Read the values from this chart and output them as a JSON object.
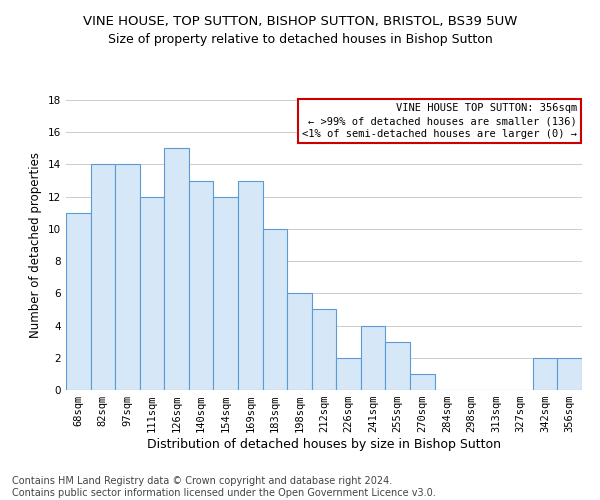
{
  "title": "VINE HOUSE, TOP SUTTON, BISHOP SUTTON, BRISTOL, BS39 5UW",
  "subtitle": "Size of property relative to detached houses in Bishop Sutton",
  "xlabel": "Distribution of detached houses by size in Bishop Sutton",
  "ylabel": "Number of detached properties",
  "categories": [
    "68sqm",
    "82sqm",
    "97sqm",
    "111sqm",
    "126sqm",
    "140sqm",
    "154sqm",
    "169sqm",
    "183sqm",
    "198sqm",
    "212sqm",
    "226sqm",
    "241sqm",
    "255sqm",
    "270sqm",
    "284sqm",
    "298sqm",
    "313sqm",
    "327sqm",
    "342sqm",
    "356sqm"
  ],
  "values": [
    11,
    14,
    14,
    12,
    15,
    13,
    12,
    13,
    10,
    6,
    5,
    2,
    4,
    3,
    1,
    0,
    0,
    0,
    0,
    2,
    2
  ],
  "bar_facecolor": "#d6e8f7",
  "bar_edgecolor": "#5b9bd5",
  "annotation_box_text": "VINE HOUSE TOP SUTTON: 356sqm\n← >99% of detached houses are smaller (136)\n<1% of semi-detached houses are larger (0) →",
  "annotation_box_edgecolor": "#cc0000",
  "annotation_box_facecolor": "#ffffff",
  "ylim": [
    0,
    18
  ],
  "yticks": [
    0,
    2,
    4,
    6,
    8,
    10,
    12,
    14,
    16,
    18
  ],
  "grid_color": "#cccccc",
  "background_color": "#ffffff",
  "footer_text": "Contains HM Land Registry data © Crown copyright and database right 2024.\nContains public sector information licensed under the Open Government Licence v3.0.",
  "title_fontsize": 9.5,
  "subtitle_fontsize": 9,
  "xlabel_fontsize": 9,
  "ylabel_fontsize": 8.5,
  "tick_fontsize": 7.5,
  "footer_fontsize": 7,
  "annotation_fontsize": 7.5
}
